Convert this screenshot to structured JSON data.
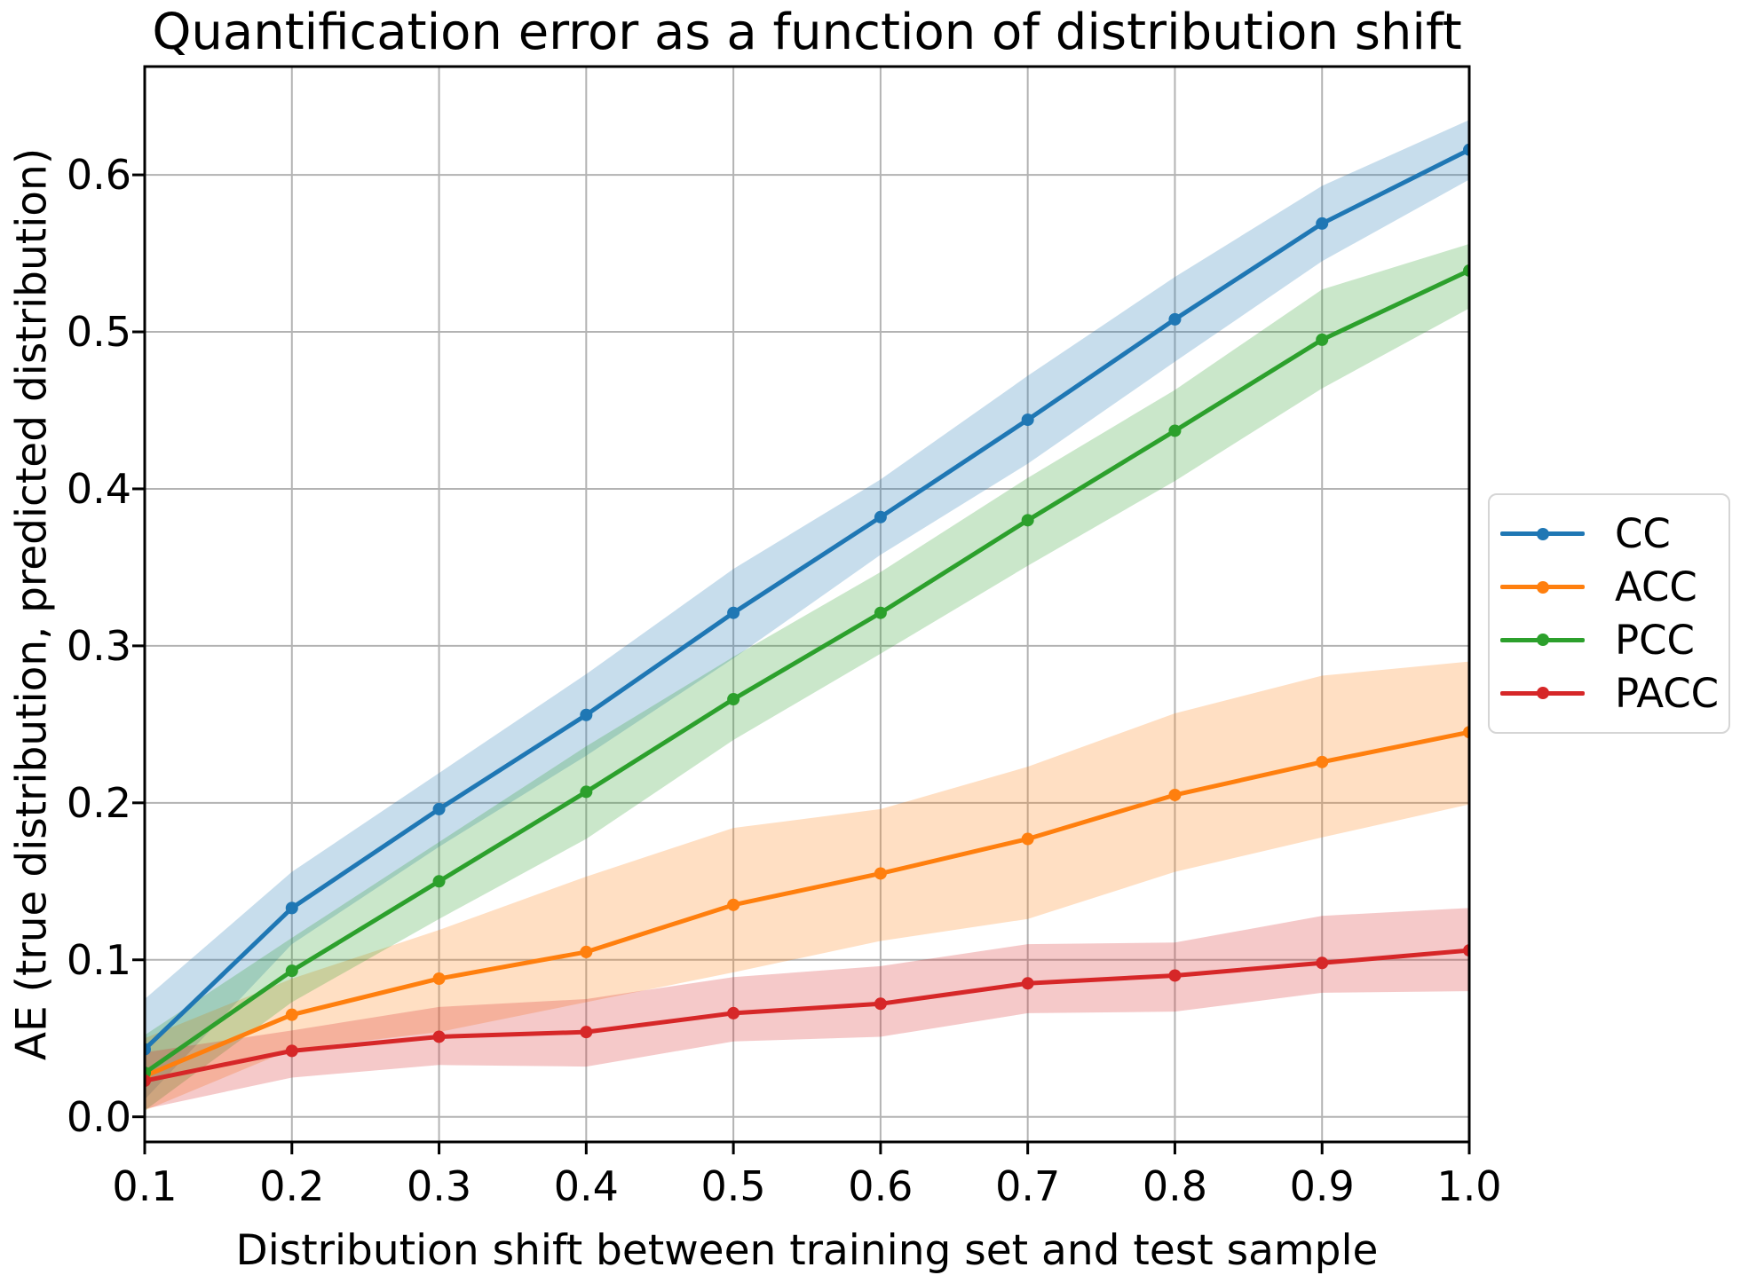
{
  "figure": {
    "title": "Quantification error as a function of distribution shift",
    "xlabel": "Distribution shift between training set and test sample",
    "ylabel": "AE (true distribution, predicted distribution)"
  },
  "chart_data": {
    "type": "line",
    "title": "Quantification error as a function of distribution shift",
    "xlabel": "Distribution shift between training set and test sample",
    "ylabel": "AE (true distribution, predicted distribution)",
    "x": [
      0.1,
      0.2,
      0.3,
      0.4,
      0.5,
      0.6,
      0.7,
      0.8,
      0.9,
      1.0
    ],
    "x_ticks": [
      "0.1",
      "0.2",
      "0.3",
      "0.4",
      "0.5",
      "0.6",
      "0.7",
      "0.8",
      "0.9",
      "1.0"
    ],
    "y_ticks": [
      "0.0",
      "0.1",
      "0.2",
      "0.3",
      "0.4",
      "0.5",
      "0.6"
    ],
    "xlim": [
      0.1,
      1.0
    ],
    "ylim": [
      -0.016,
      0.669
    ],
    "grid": true,
    "grid_color": "#b3b3b3",
    "band_alpha": 0.25,
    "legend_position": "outside-right",
    "series": [
      {
        "name": "CC",
        "color": "#1f77b4",
        "mean": [
          0.043,
          0.133,
          0.196,
          0.256,
          0.321,
          0.382,
          0.444,
          0.508,
          0.569,
          0.616
        ],
        "lower": [
          0.011,
          0.11,
          0.172,
          0.23,
          0.292,
          0.358,
          0.416,
          0.481,
          0.545,
          0.597
        ],
        "upper": [
          0.075,
          0.156,
          0.219,
          0.282,
          0.349,
          0.406,
          0.472,
          0.535,
          0.593,
          0.635
        ]
      },
      {
        "name": "ACC",
        "color": "#ff7f0e",
        "mean": [
          0.026,
          0.065,
          0.088,
          0.105,
          0.135,
          0.155,
          0.177,
          0.205,
          0.226,
          0.245
        ],
        "lower": [
          0.004,
          0.043,
          0.054,
          0.073,
          0.092,
          0.112,
          0.126,
          0.156,
          0.178,
          0.199
        ],
        "upper": [
          0.05,
          0.088,
          0.119,
          0.153,
          0.184,
          0.196,
          0.223,
          0.257,
          0.281,
          0.29
        ]
      },
      {
        "name": "PCC",
        "color": "#2ca02c",
        "mean": [
          0.028,
          0.093,
          0.15,
          0.207,
          0.266,
          0.321,
          0.38,
          0.437,
          0.495,
          0.539
        ],
        "lower": [
          0.004,
          0.073,
          0.126,
          0.177,
          0.24,
          0.295,
          0.351,
          0.405,
          0.464,
          0.515
        ],
        "upper": [
          0.052,
          0.114,
          0.175,
          0.236,
          0.293,
          0.347,
          0.407,
          0.463,
          0.527,
          0.556
        ]
      },
      {
        "name": "PACC",
        "color": "#d62728",
        "mean": [
          0.023,
          0.042,
          0.051,
          0.054,
          0.066,
          0.072,
          0.085,
          0.09,
          0.098,
          0.106
        ],
        "lower": [
          0.005,
          0.025,
          0.033,
          0.032,
          0.048,
          0.051,
          0.066,
          0.067,
          0.079,
          0.08
        ],
        "upper": [
          0.041,
          0.055,
          0.07,
          0.075,
          0.089,
          0.096,
          0.11,
          0.111,
          0.128,
          0.133
        ]
      }
    ]
  }
}
